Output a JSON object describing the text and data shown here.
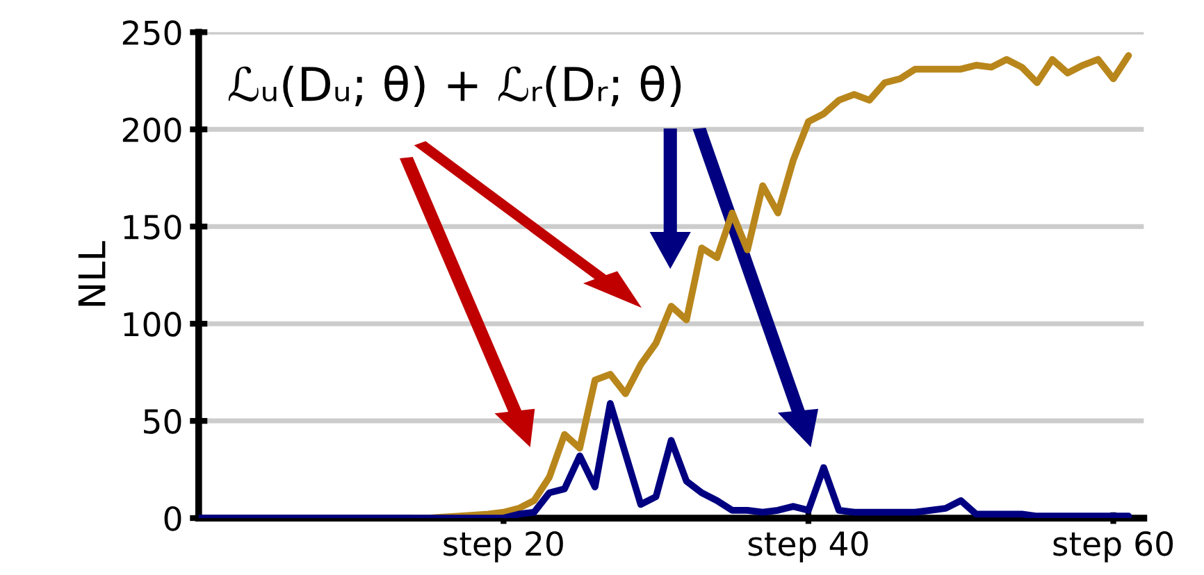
{
  "chart_data": {
    "type": "line",
    "ylabel": "NLL",
    "annotations": [
      "ℒᵤ(Dᵤ; θ) + ℒᵣ(Dᵣ; θ)"
    ],
    "categories": [
      null,
      null,
      null,
      null,
      null,
      null,
      null,
      null,
      null,
      null,
      null,
      null,
      null,
      null,
      null,
      null,
      null,
      null,
      null,
      null,
      "step 20",
      null,
      null,
      null,
      null,
      null,
      null,
      null,
      null,
      null,
      null,
      null,
      null,
      null,
      null,
      null,
      null,
      null,
      null,
      null,
      "step 40",
      null,
      null,
      null,
      null,
      null,
      null,
      null,
      null,
      null,
      null,
      null,
      null,
      null,
      null,
      null,
      null,
      null,
      null,
      null,
      "step 60",
      null
    ],
    "series": [
      {
        "color": "#b8861b",
        "values": [
          null,
          null,
          null,
          null,
          null,
          null,
          null,
          null,
          null,
          null,
          null,
          null,
          null,
          null,
          0,
          0,
          0.5,
          1,
          1.5,
          2,
          3,
          5,
          9,
          21,
          43,
          36,
          71,
          74,
          64,
          79,
          90,
          109,
          102,
          139,
          134,
          157,
          138,
          171,
          157,
          184,
          204,
          208,
          215,
          218,
          215,
          224,
          226,
          231,
          231,
          231,
          231,
          233,
          232,
          236,
          232,
          224,
          236,
          229,
          233,
          236,
          226,
          238
        ]
      },
      {
        "color": "#000080",
        "values": [
          0,
          0,
          0,
          0,
          0,
          0,
          0,
          0,
          0,
          0,
          0,
          0,
          0,
          0,
          0,
          0,
          0,
          0,
          0,
          0,
          0,
          2,
          3,
          13,
          15,
          32,
          16,
          59,
          33,
          7,
          11,
          40,
          19,
          13,
          9,
          4,
          4,
          3,
          4,
          6,
          4,
          26,
          4,
          3,
          3,
          3,
          3,
          3,
          4,
          5,
          9,
          2,
          2,
          2,
          2,
          1,
          1,
          1,
          1,
          1,
          1,
          1
        ]
      }
    ],
    "ylim": [
      0,
      250
    ],
    "yticks": [
      0,
      50,
      100,
      150,
      200,
      250
    ],
    "grid": "y",
    "line_style": "solid",
    "marker": "none"
  }
}
